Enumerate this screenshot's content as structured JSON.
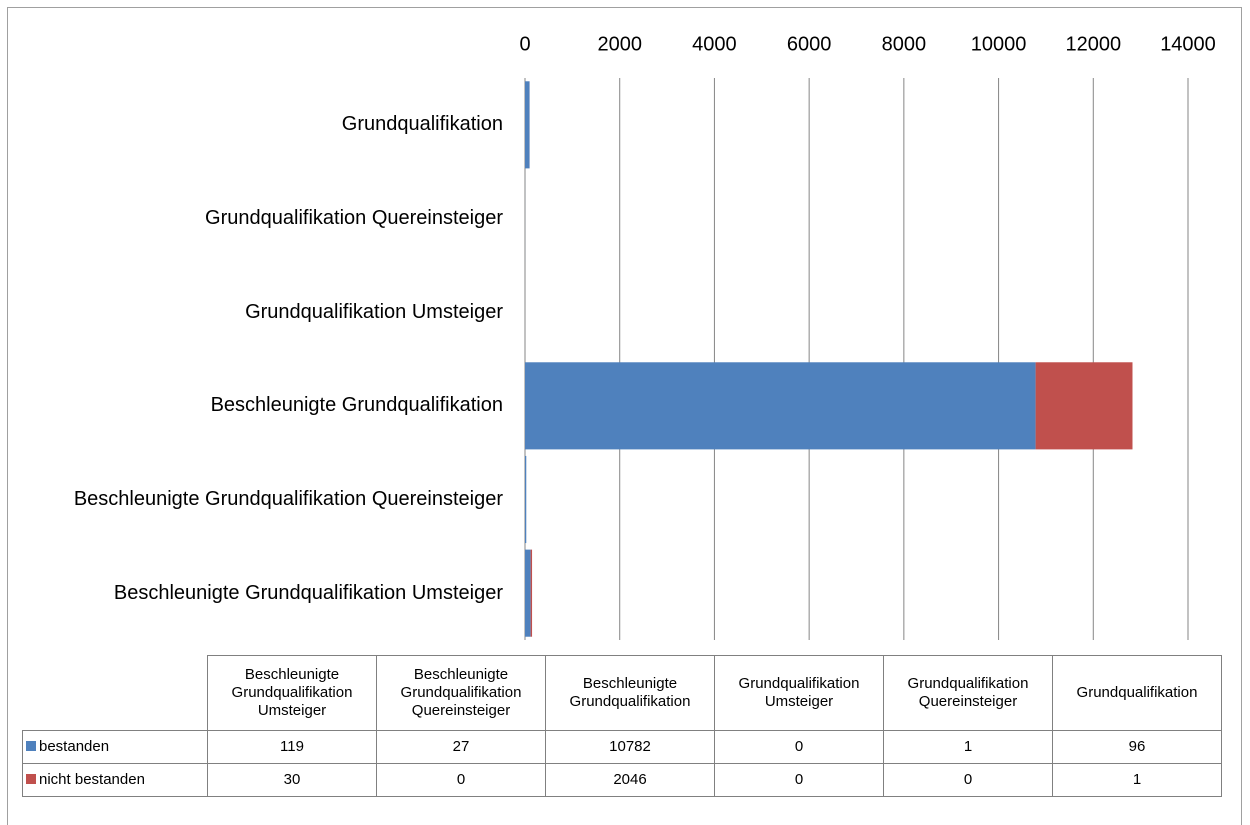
{
  "chart_data": {
    "type": "stacked-bar-horizontal",
    "categories": [
      "Beschleunigte Grundqualifikation Umsteiger",
      "Beschleunigte Grundqualifikation Quereinsteiger",
      "Beschleunigte Grundqualifikation",
      "Grundqualifikation Umsteiger",
      "Grundqualifikation Quereinsteiger",
      "Grundqualifikation"
    ],
    "series": [
      {
        "name": "bestanden",
        "color": "#4f81bd",
        "values": [
          119,
          27,
          10782,
          0,
          1,
          96
        ]
      },
      {
        "name": "nicht bestanden",
        "color": "#c0504d",
        "values": [
          30,
          0,
          2046,
          0,
          0,
          1
        ]
      }
    ],
    "xlim": [
      0,
      14000
    ],
    "xticks": [
      0,
      2000,
      4000,
      6000,
      8000,
      10000,
      12000,
      14000
    ],
    "grid": true,
    "data_table": true
  }
}
